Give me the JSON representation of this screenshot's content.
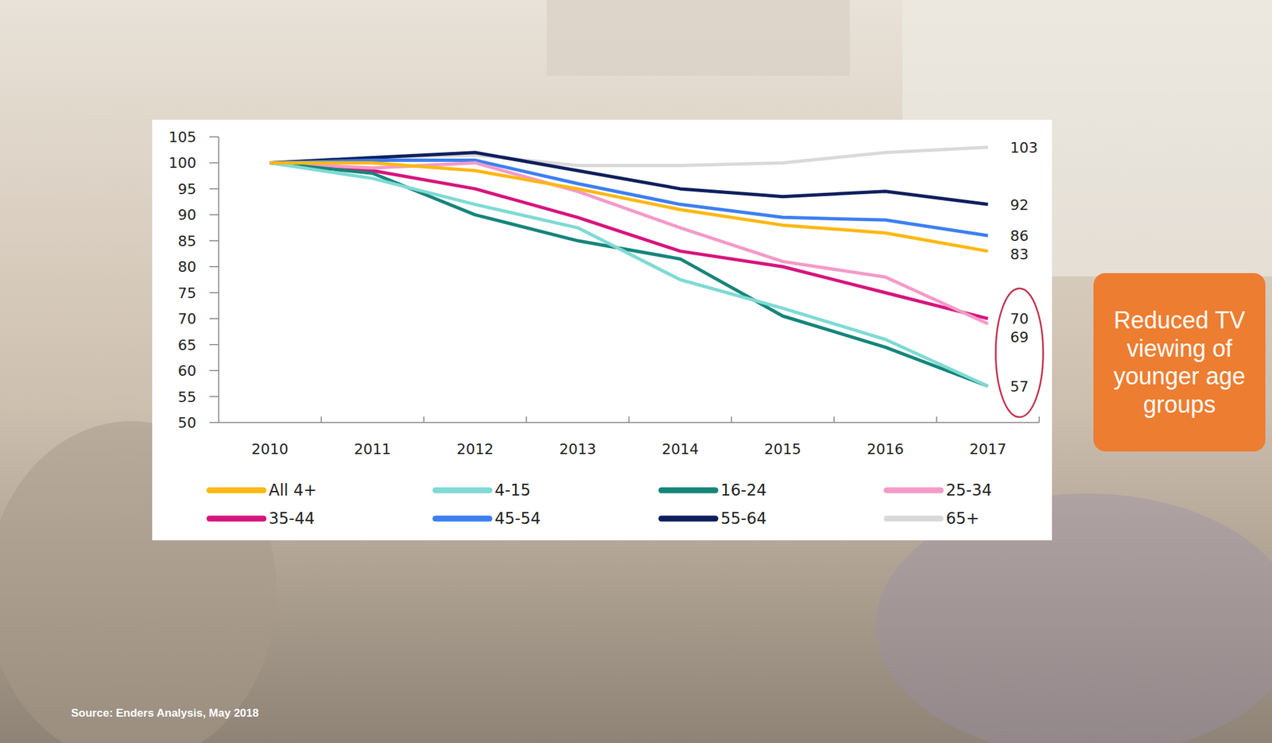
{
  "chart_data": {
    "type": "line",
    "categories": [
      "2010",
      "2011",
      "2012",
      "2013",
      "2014",
      "2015",
      "2016",
      "2017"
    ],
    "ylim": [
      50,
      105
    ],
    "yticks": [
      50,
      55,
      60,
      65,
      70,
      75,
      80,
      85,
      90,
      95,
      100,
      105
    ],
    "grid": false,
    "legend": "bottom",
    "data_labels": true,
    "series": [
      {
        "name": "All 4+",
        "color": "#fdb813",
        "values": [
          100,
          100,
          98.5,
          95,
          91,
          88,
          86.5,
          83
        ],
        "value_labels": [
          null,
          null,
          null,
          null,
          null,
          null,
          null,
          "83"
        ]
      },
      {
        "name": "4-15",
        "color": "#7fdad4",
        "values": [
          100,
          97,
          92,
          87.5,
          77.5,
          72,
          66,
          57
        ]
      },
      {
        "name": "16-24",
        "color": "#16857a",
        "values": [
          100,
          98,
          90,
          85,
          81.5,
          70.5,
          64.5,
          57
        ],
        "value_labels": [
          null,
          null,
          null,
          null,
          null,
          null,
          null,
          "57"
        ]
      },
      {
        "name": "25-34",
        "color": "#f49ac8",
        "values": [
          100,
          99,
          100,
          94.5,
          87.5,
          81,
          78,
          69
        ],
        "value_labels": [
          null,
          null,
          null,
          null,
          null,
          null,
          null,
          "69"
        ]
      },
      {
        "name": "35-44",
        "color": "#d6157d",
        "values": [
          100,
          98.5,
          95,
          89.5,
          83,
          80,
          75,
          70
        ],
        "value_labels": [
          null,
          null,
          null,
          null,
          null,
          null,
          null,
          "70"
        ]
      },
      {
        "name": "45-54",
        "color": "#3d7ff0",
        "values": [
          100,
          100.5,
          100.5,
          96,
          92,
          89.5,
          89,
          86
        ],
        "value_labels": [
          null,
          null,
          null,
          null,
          null,
          null,
          null,
          "86"
        ]
      },
      {
        "name": "55-64",
        "color": "#0f1f5c",
        "values": [
          100,
          101,
          102,
          98.5,
          95,
          93.5,
          94.5,
          92
        ],
        "value_labels": [
          null,
          null,
          null,
          null,
          null,
          null,
          null,
          "92"
        ]
      },
      {
        "name": "65+",
        "color": "#d9d9d9",
        "values": [
          100,
          101,
          101.5,
          99.5,
          99.5,
          100,
          102,
          103
        ],
        "value_labels": [
          null,
          null,
          null,
          null,
          null,
          null,
          null,
          "103"
        ]
      }
    ],
    "annotation": "Reduced TV viewing of younger age groups",
    "source": "Source: Enders Analysis, May 2018"
  }
}
